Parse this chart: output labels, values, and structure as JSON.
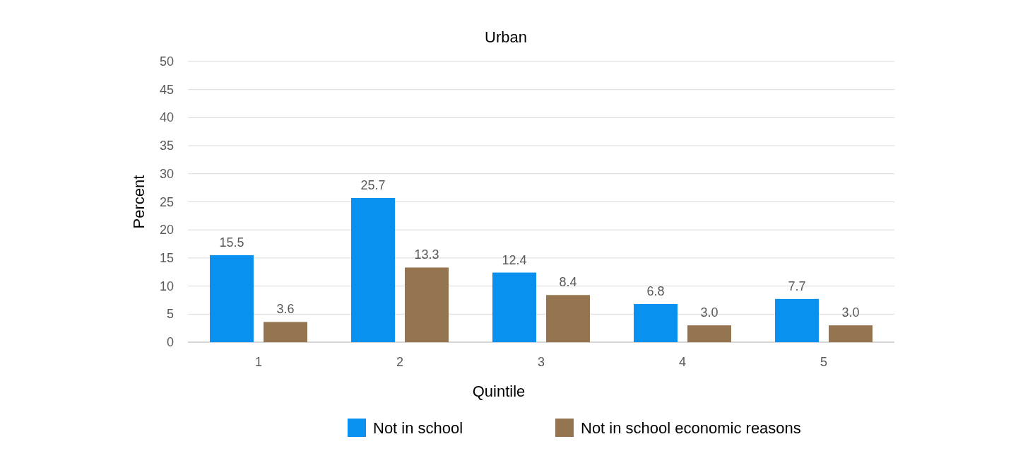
{
  "chart_data": {
    "type": "bar",
    "title": "Urban",
    "xlabel": "Quintile",
    "ylabel": "Percent",
    "categories": [
      "1",
      "2",
      "3",
      "4",
      "5"
    ],
    "series": [
      {
        "name": "Not in school",
        "color": "#0a90ee",
        "values": [
          15.5,
          25.7,
          12.4,
          6.8,
          7.7
        ]
      },
      {
        "name": "Not in school economic reasons",
        "color": "#957450",
        "values": [
          3.6,
          13.3,
          8.4,
          3.0,
          3.0
        ]
      }
    ],
    "value_labels": [
      [
        "15.5",
        "25.7",
        "12.4",
        "6.8",
        "7.7"
      ],
      [
        "3.6",
        "13.3",
        "8.4",
        "3.0",
        "3.0"
      ]
    ],
    "ylim": [
      0,
      50
    ],
    "yticks": [
      0,
      5,
      10,
      15,
      20,
      25,
      30,
      35,
      40,
      45,
      50
    ],
    "grid": "y",
    "legend": "bottom"
  }
}
